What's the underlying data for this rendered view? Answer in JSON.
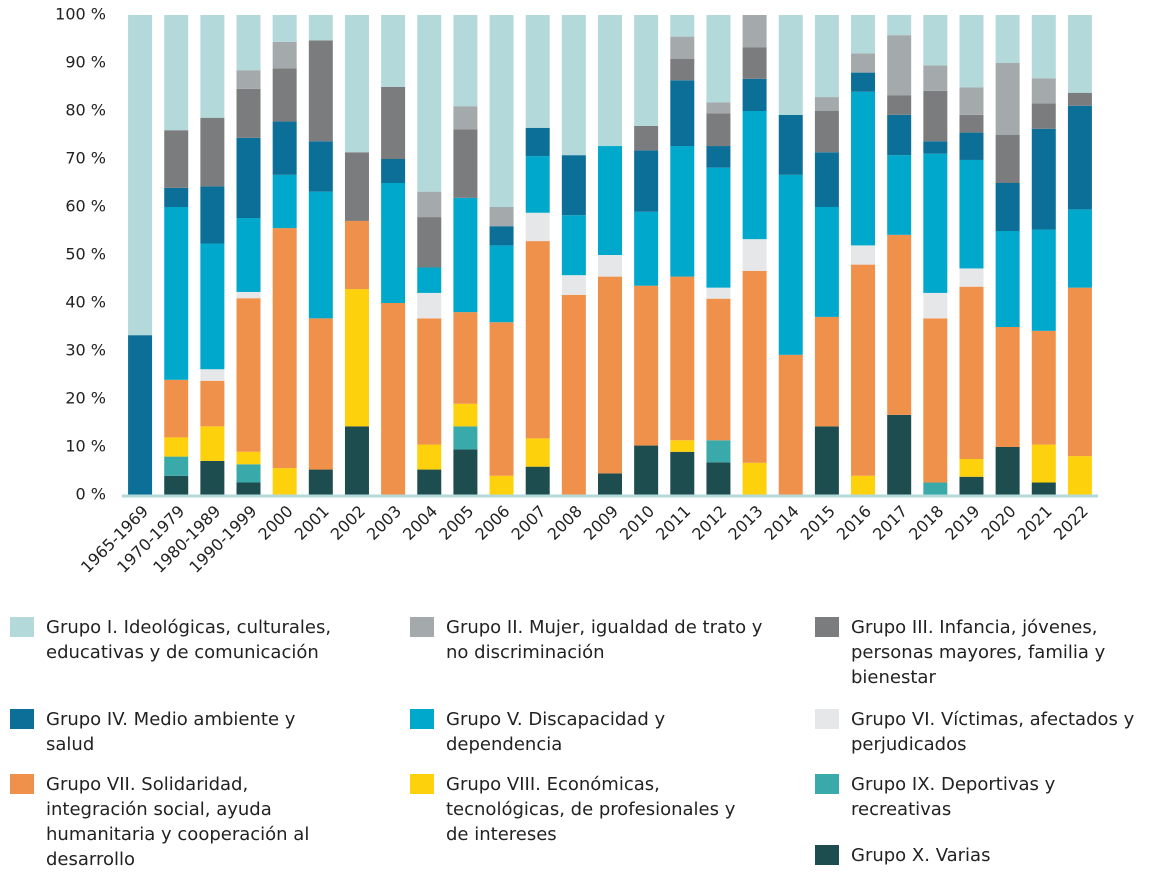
{
  "chart_data": {
    "type": "stacked_bar_percent",
    "categories": [
      "1965-1969",
      "1970-1979",
      "1980-1989",
      "1990-1999",
      "2000",
      "2001",
      "2002",
      "2003",
      "2004",
      "2005",
      "2006",
      "2007",
      "2008",
      "2009",
      "2010",
      "2011",
      "2012",
      "2013",
      "2014",
      "2015",
      "2016",
      "2017",
      "2018",
      "2019",
      "2020",
      "2021",
      "2022"
    ],
    "ylim": [
      0,
      100
    ],
    "yticks": [
      {
        "value": 0,
        "label": "0 %"
      },
      {
        "value": 10,
        "label": "10 %"
      },
      {
        "value": 20,
        "label": "20 %"
      },
      {
        "value": 30,
        "label": "30 %"
      },
      {
        "value": 40,
        "label": "40 %"
      },
      {
        "value": 50,
        "label": "50 %"
      },
      {
        "value": 60,
        "label": "60 %"
      },
      {
        "value": 70,
        "label": "70 %"
      },
      {
        "value": 80,
        "label": "80 %"
      },
      {
        "value": 90,
        "label": "90 %"
      },
      {
        "value": 100,
        "label": "100 %"
      }
    ],
    "series": [
      {
        "name": "Grupo I. Ideológicas, culturales, educativas y de comunicación",
        "color": "#b3d9da",
        "values": [
          66.7,
          24,
          21.4,
          11.5,
          5.6,
          5.3,
          28.6,
          15,
          36.8,
          19,
          40,
          23.5,
          29.2,
          27.3,
          23.1,
          4.5,
          18.2,
          0,
          20.8,
          17.1,
          8,
          4.2,
          10.5,
          15.1,
          10,
          13.2,
          16.2
        ]
      },
      {
        "name": "Grupo II. Mujer, igualdad de trato y no discriminación",
        "color": "#a4a9ab",
        "values": [
          0,
          0,
          0,
          3.9,
          5.5,
          0,
          0,
          0,
          5.3,
          4.8,
          4,
          0,
          0,
          0,
          0,
          4.6,
          2.3,
          6.7,
          0,
          2.9,
          4,
          12.5,
          5.3,
          5.7,
          15,
          5.2,
          0
        ]
      },
      {
        "name": "Grupo III. Infancia, jóvenes, personas mayores, familia y bienestar",
        "color": "#7b7c7d",
        "values": [
          0,
          12,
          14.3,
          10.2,
          11.1,
          21,
          14.3,
          15,
          10.5,
          14.3,
          0,
          0,
          0,
          0,
          5.1,
          4.5,
          6.8,
          6.6,
          0,
          8.6,
          0,
          4.1,
          10.5,
          3.7,
          10,
          5.3,
          2.7
        ]
      },
      {
        "name": "Grupo IV. Medio ambiente y salud",
        "color": "#0c6f97",
        "values": [
          33.3,
          4,
          11.9,
          16.7,
          11.1,
          10.5,
          0,
          5,
          0,
          0,
          4,
          5.9,
          12.5,
          0,
          12.8,
          13.7,
          4.5,
          6.7,
          12.5,
          11.4,
          4,
          8.4,
          2.6,
          5.7,
          10,
          21,
          21.6
        ]
      },
      {
        "name": "Grupo V. Discapacidad y dependencia",
        "color": "#00a8cb",
        "values": [
          0,
          36,
          26.2,
          15.4,
          11.1,
          26.4,
          0,
          25,
          5.3,
          23.8,
          16,
          11.8,
          12.5,
          22.7,
          15.4,
          27.2,
          25,
          26.7,
          37.5,
          22.9,
          32,
          16.6,
          29,
          22.6,
          20,
          21.1,
          16.3
        ]
      },
      {
        "name": "Grupo VI. Víctimas, afectados y perjudicados",
        "color": "#e6e7e8",
        "values": [
          0,
          0,
          2.4,
          1.3,
          0,
          0,
          0,
          0,
          5.3,
          0,
          0,
          5.9,
          4.1,
          4.5,
          0,
          0,
          2.3,
          6.6,
          0,
          0,
          4,
          0,
          5.3,
          3.8,
          0,
          0,
          0
        ]
      },
      {
        "name": "Grupo VII. Solidaridad, integración social, ayuda humanitaria y cooperación al desarrollo",
        "color": "#f0914b",
        "values": [
          0,
          12,
          9.5,
          32,
          50,
          31.5,
          14.2,
          40,
          26.3,
          19.1,
          32,
          41.1,
          41.7,
          41,
          33.3,
          34.1,
          29.5,
          40,
          29.2,
          22.8,
          44,
          37.5,
          34.2,
          35.9,
          25,
          23.7,
          35.1
        ]
      },
      {
        "name": "Grupo VIII. Económicas, tecnológicas, de profesionales y de intereses",
        "color": "#fdd10c",
        "values": [
          0,
          4,
          7.2,
          2.6,
          5.6,
          0,
          28.6,
          0,
          5.2,
          4.7,
          4,
          5.9,
          0,
          0,
          0,
          2.4,
          0,
          6.7,
          0,
          0,
          4,
          0,
          0,
          3.7,
          0,
          7.9,
          8.1
        ]
      },
      {
        "name": "Grupo IX. Deportivas y recreativas",
        "color": "#3aa9aa",
        "values": [
          0,
          4,
          0,
          3.8,
          0,
          0,
          0,
          0,
          0,
          4.8,
          0,
          0,
          0,
          0,
          0,
          0,
          4.6,
          0,
          0,
          0,
          0,
          0,
          2.6,
          0,
          0,
          0,
          0
        ]
      },
      {
        "name": "Grupo X. Varias",
        "color": "#1d4d4f",
        "values": [
          0,
          4,
          7.1,
          2.6,
          0,
          5.3,
          14.3,
          0,
          5.3,
          9.5,
          0,
          5.9,
          0,
          4.5,
          10.3,
          9,
          6.8,
          0,
          0,
          14.3,
          0,
          16.7,
          0,
          3.8,
          10,
          2.6,
          0
        ]
      }
    ]
  }
}
